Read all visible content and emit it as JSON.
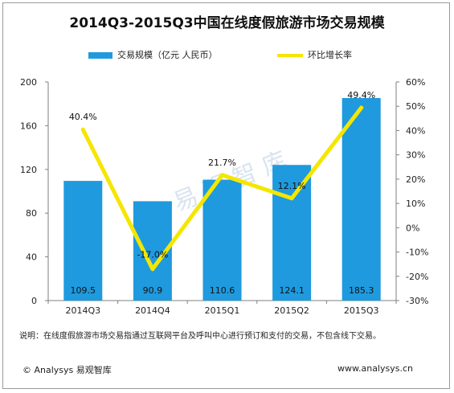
{
  "chart_data": {
    "type": "bar+line",
    "title": "2014Q3-2015Q3中国在线度假旅游市场交易规模",
    "categories": [
      "2014Q3",
      "2014Q4",
      "2015Q1",
      "2015Q2",
      "2015Q3"
    ],
    "series": [
      {
        "name": "交易规模（亿元 人民币）",
        "type": "bar",
        "axis": "left",
        "values": [
          109.5,
          90.9,
          110.6,
          124.1,
          185.3
        ],
        "labels": [
          "109.5",
          "90.9",
          "110.6",
          "124.1",
          "185.3"
        ],
        "color": "#1f9ade"
      },
      {
        "name": "环比增长率",
        "type": "line",
        "axis": "right",
        "values": [
          40.4,
          -17.0,
          21.7,
          12.1,
          49.4
        ],
        "labels": [
          "40.4%",
          "-17.0%",
          "21.7%",
          "12.1%",
          "49.4%"
        ],
        "color": "#f5e600"
      }
    ],
    "y_left": {
      "min": 0,
      "max": 200,
      "ticks": [
        "0",
        "40",
        "80",
        "120",
        "160",
        "200"
      ]
    },
    "y_right": {
      "min": -30,
      "max": 60,
      "ticks": [
        "-30%",
        "-20%",
        "-10%",
        "0%",
        "10%",
        "20%",
        "30%",
        "40%",
        "50%",
        "60%"
      ]
    },
    "grid": false,
    "legend_position": "top"
  },
  "note": "说明：在线度假旅游市场交易指通过互联网平台及呼叫中心进行预订和支付的交易，不包含线下交易。",
  "footer": {
    "left": "© Analysys 易观智库",
    "right": "www.analysys.cn"
  }
}
